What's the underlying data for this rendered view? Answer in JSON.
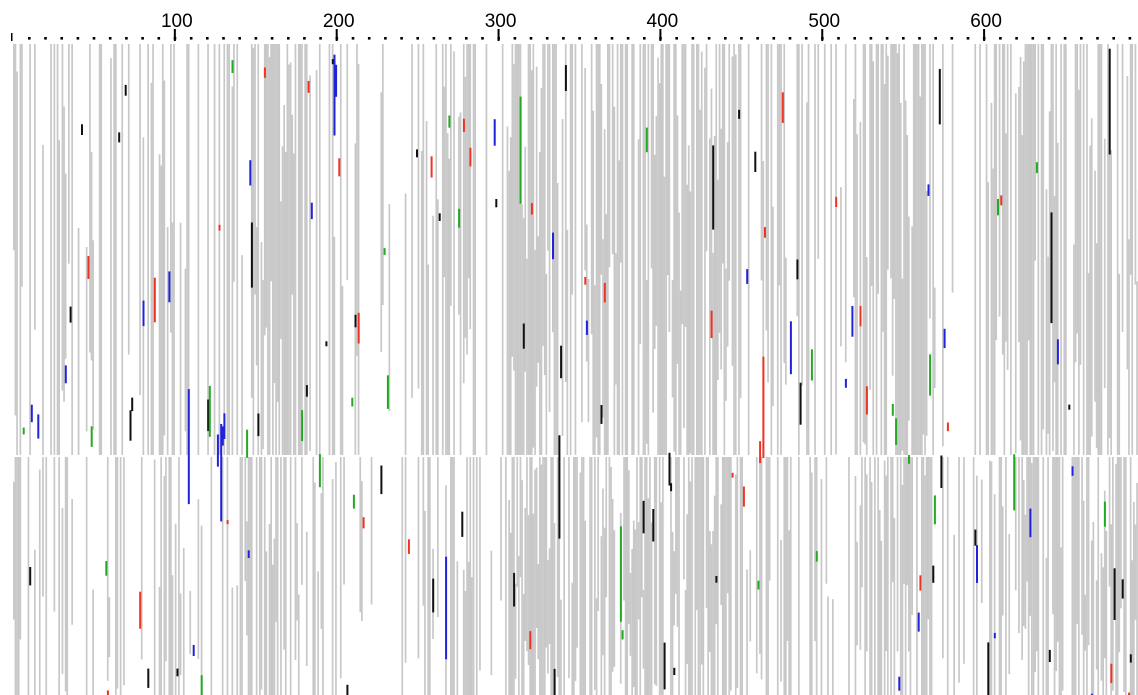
{
  "ruler": {
    "labels": [
      100,
      200,
      300,
      400,
      500,
      600
    ]
  }
}
